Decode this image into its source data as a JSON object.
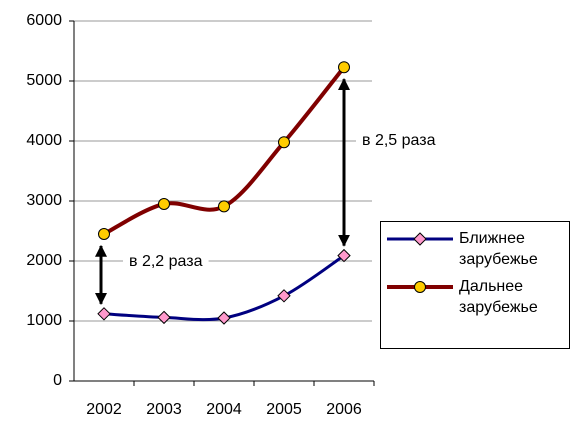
{
  "chart_data": {
    "type": "line",
    "categories": [
      "2002",
      "2003",
      "2004",
      "2005",
      "2006"
    ],
    "series": [
      {
        "name": "Ближнее зарубежье",
        "color": "#000080",
        "marker": "diamond",
        "marker_color": "#ff99cc",
        "values": [
          1120,
          1060,
          1050,
          1420,
          2090
        ]
      },
      {
        "name": "Дальнее зарубежье",
        "color": "#800000",
        "marker": "circle",
        "marker_color": "#ffcc00",
        "values": [
          2450,
          2950,
          2910,
          3980,
          5230
        ]
      }
    ],
    "ylim": [
      0,
      6000
    ],
    "yticks": [
      0,
      1000,
      2000,
      3000,
      4000,
      5000,
      6000
    ],
    "grid": true,
    "annotations": [
      "в 2,2 раза",
      "в 2,5 раза"
    ],
    "legend": "right"
  }
}
